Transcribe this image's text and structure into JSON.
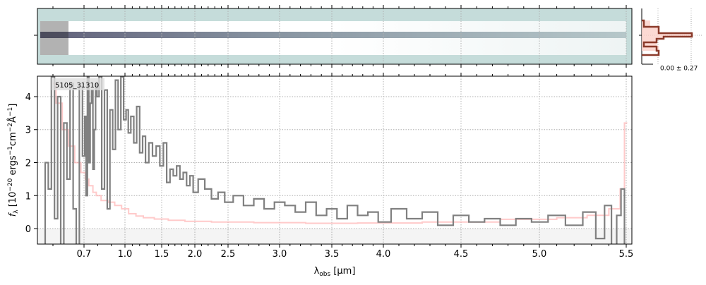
{
  "chart_data": {
    "type": "line",
    "object_label": "5105_31310",
    "xlabel": {
      "main": "λ",
      "sub": "obs",
      "unit": " [μm]"
    },
    "ylabel": {
      "f": "f",
      "sub": "λ",
      "open": " [10",
      "e1": "−20",
      "t1": " ergs",
      "e2": "−1",
      "t2": "cm",
      "e3": "−2",
      "t3": "Å",
      "e4": "−1",
      "close": "]"
    },
    "xticks": [
      0.7,
      1.0,
      1.5,
      2.0,
      2.5,
      3.0,
      3.5,
      4.0,
      4.5,
      5.0,
      5.5
    ],
    "xtick_labels": [
      "0.7",
      "1.0",
      "1.5",
      "2.0",
      "2.5",
      "3.0",
      "3.5",
      "4.0",
      "4.5",
      "5.0",
      "5.5"
    ],
    "yticks": [
      0,
      1,
      2,
      3,
      4
    ],
    "ytick_labels": [
      "0",
      "1",
      "2",
      "3",
      "4"
    ],
    "xlim": [
      0.55,
      5.52
    ],
    "ylim": [
      -0.47,
      4.62
    ],
    "grid": true,
    "series": [
      {
        "name": "flux",
        "color": "#808080",
        "x": [
          0.57,
          0.58,
          0.59,
          0.6,
          0.61,
          0.62,
          0.63,
          0.64,
          0.65,
          0.66,
          0.67,
          0.68,
          0.69,
          0.7,
          0.71,
          0.72,
          0.73,
          0.74,
          0.75,
          0.76,
          0.77,
          0.78,
          0.79,
          0.8,
          0.82,
          0.84,
          0.86,
          0.88,
          0.9,
          0.92,
          0.94,
          0.96,
          0.98,
          1.0,
          1.03,
          1.06,
          1.1,
          1.14,
          1.18,
          1.22,
          1.26,
          1.3,
          1.35,
          1.4,
          1.45,
          1.5,
          1.55,
          1.6,
          1.65,
          1.7,
          1.75,
          1.8,
          1.85,
          1.9,
          1.95,
          2.0,
          2.1,
          2.2,
          2.3,
          2.4,
          2.5,
          2.6,
          2.7,
          2.8,
          2.9,
          3.0,
          3.1,
          3.2,
          3.3,
          3.4,
          3.5,
          3.6,
          3.7,
          3.8,
          3.9,
          4.0,
          4.1,
          4.2,
          4.3,
          4.4,
          4.5,
          4.6,
          4.7,
          4.8,
          4.9,
          5.0,
          5.1,
          5.2,
          5.3,
          5.35,
          5.4,
          5.43,
          5.46,
          5.48,
          5.5
        ],
        "y": [
          -0.5,
          2.0,
          1.2,
          4.6,
          0.3,
          4.0,
          -0.5,
          3.2,
          1.5,
          4.4,
          0.6,
          -0.5,
          4.3,
          2.2,
          3.4,
          1.0,
          4.6,
          2.0,
          3.8,
          4.2,
          1.8,
          3.0,
          4.4,
          4.0,
          4.6,
          1.2,
          4.2,
          0.6,
          3.6,
          2.4,
          4.5,
          3.0,
          4.6,
          3.3,
          3.6,
          2.9,
          3.4,
          2.6,
          3.7,
          2.3,
          2.8,
          2.0,
          2.6,
          2.2,
          2.5,
          1.9,
          2.6,
          1.4,
          1.8,
          1.6,
          1.9,
          1.5,
          1.7,
          1.3,
          1.6,
          1.1,
          1.5,
          1.2,
          0.9,
          1.1,
          0.8,
          1.0,
          0.7,
          0.9,
          0.6,
          0.8,
          0.7,
          0.5,
          0.8,
          0.4,
          0.6,
          0.3,
          0.7,
          0.4,
          0.5,
          0.2,
          0.6,
          0.3,
          0.5,
          0.1,
          0.4,
          0.2,
          0.3,
          0.1,
          0.3,
          0.2,
          0.4,
          0.1,
          0.5,
          -0.3,
          0.7,
          -0.5,
          0.4,
          1.2,
          -0.5
        ]
      },
      {
        "name": "error",
        "color": "#ffb3b3",
        "x": [
          0.6,
          0.62,
          0.64,
          0.66,
          0.68,
          0.7,
          0.72,
          0.75,
          0.78,
          0.8,
          0.85,
          0.9,
          0.95,
          1.0,
          1.1,
          1.2,
          1.3,
          1.5,
          1.7,
          2.0,
          2.5,
          3.0,
          3.5,
          4.0,
          4.5,
          5.0,
          5.2,
          5.35,
          5.45,
          5.48,
          5.5
        ],
        "y": [
          4.4,
          3.8,
          3.0,
          2.5,
          2.0,
          1.7,
          1.5,
          1.3,
          1.1,
          1.0,
          0.85,
          0.8,
          0.7,
          0.6,
          0.45,
          0.38,
          0.33,
          0.29,
          0.25,
          0.22,
          0.2,
          0.18,
          0.16,
          0.17,
          0.2,
          0.28,
          0.33,
          0.4,
          0.6,
          1.2,
          3.2
        ]
      }
    ]
  },
  "histogram_panel": {
    "label": "0.00 ± 0.27"
  },
  "colors": {
    "spec2d_bg": "#c5dcda",
    "zero_band": "#f2f2f2"
  }
}
